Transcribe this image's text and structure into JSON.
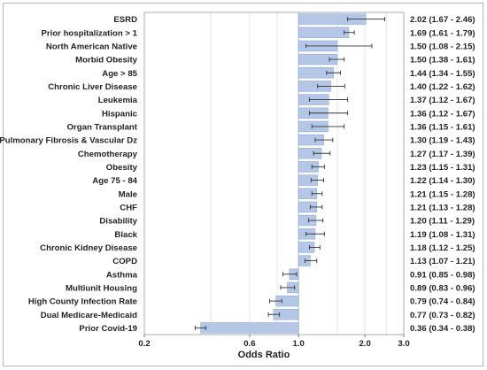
{
  "chart_data": {
    "type": "forest",
    "xlabel": "Odds Ratio",
    "xscale": "log",
    "xlim": [
      0.2,
      3.0
    ],
    "xticks": [
      0.2,
      0.6,
      1.0,
      2.0,
      3.0
    ],
    "xtick_labels": [
      "0.2",
      "0.6",
      "1.0",
      "2.0",
      "3.0"
    ],
    "reference_line": 1.0,
    "grid": "vertical",
    "bar_color": "#b4c7e7",
    "bar_edge_color": "#8faadc",
    "rows": [
      {
        "label": "ESRD",
        "or": 2.02,
        "lo": 1.67,
        "hi": 2.46,
        "ci_text": "2.02 (1.67 - 2.46)"
      },
      {
        "label": "Prior hospitalization > 1",
        "or": 1.69,
        "lo": 1.61,
        "hi": 1.79,
        "ci_text": "1.69 (1.61 - 1.79)"
      },
      {
        "label": "North American Native",
        "or": 1.5,
        "lo": 1.08,
        "hi": 2.15,
        "ci_text": "1.50 (1.08 - 2.15)"
      },
      {
        "label": "Morbid Obesity",
        "or": 1.5,
        "lo": 1.38,
        "hi": 1.61,
        "ci_text": "1.50 (1.38 - 1.61)"
      },
      {
        "label": "Age > 85",
        "or": 1.44,
        "lo": 1.34,
        "hi": 1.55,
        "ci_text": "1.44 (1.34 - 1.55)"
      },
      {
        "label": "Chronic Liver Disease",
        "or": 1.4,
        "lo": 1.22,
        "hi": 1.62,
        "ci_text": "1.40 (1.22 - 1.62)"
      },
      {
        "label": "Leukemia",
        "or": 1.37,
        "lo": 1.12,
        "hi": 1.67,
        "ci_text": "1.37 (1.12 - 1.67)"
      },
      {
        "label": "Hispanic",
        "or": 1.36,
        "lo": 1.12,
        "hi": 1.67,
        "ci_text": "1.36 (1.12 - 1.67)"
      },
      {
        "label": "Organ Transplant",
        "or": 1.36,
        "lo": 1.15,
        "hi": 1.61,
        "ci_text": "1.36 (1.15 - 1.61)"
      },
      {
        "label": "Pulmonary Fibrosis & Vascular Dz",
        "or": 1.3,
        "lo": 1.19,
        "hi": 1.43,
        "ci_text": "1.30 (1.19 - 1.43)"
      },
      {
        "label": "Chemotherapy",
        "or": 1.27,
        "lo": 1.17,
        "hi": 1.39,
        "ci_text": "1.27 (1.17 - 1.39)"
      },
      {
        "label": "Obesity",
        "or": 1.23,
        "lo": 1.15,
        "hi": 1.31,
        "ci_text": "1.23 (1.15 - 1.31)"
      },
      {
        "label": "Age 75 - 84",
        "or": 1.22,
        "lo": 1.14,
        "hi": 1.3,
        "ci_text": "1.22 (1.14 - 1.30)"
      },
      {
        "label": "Male",
        "or": 1.21,
        "lo": 1.15,
        "hi": 1.28,
        "ci_text": "1.21 (1.15 - 1.28)"
      },
      {
        "label": "CHF",
        "or": 1.21,
        "lo": 1.13,
        "hi": 1.28,
        "ci_text": "1.21 (1.13 - 1.28)"
      },
      {
        "label": "Disability",
        "or": 1.2,
        "lo": 1.11,
        "hi": 1.29,
        "ci_text": "1.20 (1.11 - 1.29)"
      },
      {
        "label": "Black",
        "or": 1.19,
        "lo": 1.08,
        "hi": 1.31,
        "ci_text": "1.19 (1.08 - 1.31)"
      },
      {
        "label": "Chronic Kidney Disease",
        "or": 1.18,
        "lo": 1.12,
        "hi": 1.25,
        "ci_text": "1.18 (1.12 - 1.25)"
      },
      {
        "label": "COPD",
        "or": 1.13,
        "lo": 1.07,
        "hi": 1.21,
        "ci_text": "1.13 (1.07 - 1.21)"
      },
      {
        "label": "Asthma",
        "or": 0.91,
        "lo": 0.85,
        "hi": 0.98,
        "ci_text": "0.91 (0.85 - 0.98)"
      },
      {
        "label": "Multiunit Housing",
        "or": 0.89,
        "lo": 0.83,
        "hi": 0.96,
        "ci_text": "0.89 (0.83 - 0.96)"
      },
      {
        "label": "High County Infection Rate",
        "or": 0.79,
        "lo": 0.74,
        "hi": 0.84,
        "ci_text": "0.79 (0.74 - 0.84)"
      },
      {
        "label": "Dual Medicare-Medicaid",
        "or": 0.77,
        "lo": 0.73,
        "hi": 0.82,
        "ci_text": "0.77 (0.73 - 0.82)"
      },
      {
        "label": "Prior Covid-19",
        "or": 0.36,
        "lo": 0.34,
        "hi": 0.38,
        "ci_text": "0.36 (0.34 - 0.38)"
      }
    ]
  }
}
